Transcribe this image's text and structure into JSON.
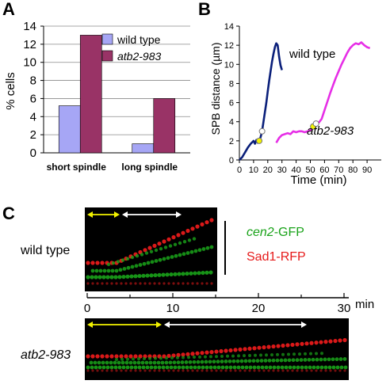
{
  "panels": {
    "a": "A",
    "b": "B",
    "c": "C"
  },
  "colors": {
    "wild_type_bar": "#a6a6f5",
    "atb2_bar": "#993366",
    "wild_type_line": "#0a1f7a",
    "atb2_line": "#e62ee6",
    "gfp": "#1aa31a",
    "rfp": "#e61a1a",
    "yellow_arrow": "#f2f200",
    "white_arrow": "#ffffff"
  },
  "chart_data": [
    {
      "type": "bar",
      "categories": [
        "short spindle",
        "long spindle"
      ],
      "series": [
        {
          "name": "wild type",
          "values": [
            5.2,
            1.0
          ]
        },
        {
          "name": "atb2-983",
          "values": [
            13.0,
            6.0
          ]
        }
      ],
      "ylabel": "% cells",
      "ylim": [
        0,
        14
      ],
      "yticks": [
        0,
        2,
        4,
        6,
        8,
        10,
        12,
        14
      ],
      "grid": true,
      "legend": "top-right"
    },
    {
      "type": "line",
      "xlabel": "Time (min)",
      "ylabel": "SPB distance (µm)",
      "xlim": [
        0,
        100
      ],
      "ylim": [
        0,
        14
      ],
      "xticks": [
        0,
        10,
        20,
        30,
        40,
        50,
        60,
        70,
        80,
        90
      ],
      "yticks": [
        0,
        2,
        4,
        6,
        8,
        10,
        12,
        14
      ],
      "series": [
        {
          "name": "wild type",
          "x": [
            0,
            2,
            4,
            6,
            8,
            10,
            11,
            12,
            13,
            14,
            15,
            16,
            17,
            18,
            19,
            20,
            21,
            22,
            23,
            24,
            25,
            26,
            27,
            28,
            29,
            30
          ],
          "y": [
            0.0,
            0.3,
            0.8,
            1.3,
            1.7,
            2.0,
            1.7,
            2.1,
            1.8,
            2.0,
            2.4,
            3.0,
            4.0,
            5.0,
            6.0,
            7.2,
            8.3,
            9.3,
            10.3,
            11.1,
            11.8,
            12.2,
            12.0,
            10.8,
            9.9,
            9.4
          ]
        },
        {
          "name": "atb2-983",
          "x": [
            26,
            28,
            30,
            32,
            34,
            36,
            38,
            40,
            42,
            44,
            46,
            48,
            50,
            52,
            54,
            56,
            58,
            60,
            62,
            64,
            66,
            68,
            70,
            72,
            74,
            76,
            78,
            80,
            82,
            84,
            86,
            88,
            90,
            92
          ],
          "y": [
            1.8,
            2.3,
            2.6,
            2.7,
            2.8,
            2.7,
            3.0,
            2.9,
            3.0,
            3.0,
            2.9,
            3.0,
            3.1,
            3.5,
            3.8,
            3.9,
            4.3,
            5.2,
            6.1,
            7.0,
            7.8,
            8.6,
            9.3,
            10.0,
            10.6,
            11.2,
            11.7,
            12.0,
            12.2,
            12.1,
            12.3,
            12.0,
            11.8,
            11.7
          ]
        }
      ],
      "annotations": [
        {
          "text": "wild type",
          "near": "wild type curve"
        },
        {
          "text": "atb2-983",
          "near": "atb2-983 curve"
        }
      ]
    }
  ],
  "kymographs": {
    "gfp_label_italic": "cen2",
    "gfp_label_rest": "-GFP",
    "rfp_label": "Sad1-RFP",
    "wild_type_label": "wild type",
    "atb2_label": "atb2-983",
    "time_axis": {
      "ticks": [
        "0",
        "10",
        "20",
        "30"
      ],
      "unit": "min"
    }
  }
}
